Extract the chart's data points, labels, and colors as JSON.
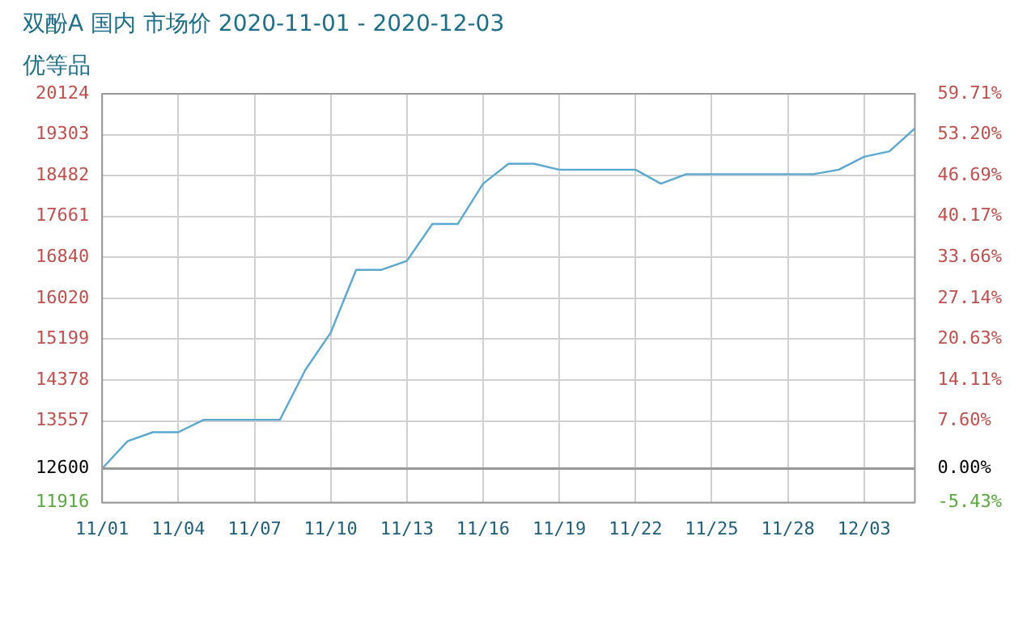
{
  "chart_data": {
    "type": "line",
    "title": "双酚A 国内 市场价 2020-11-01 - 2020-12-03",
    "subtitle": "优等品",
    "x": [
      "2020-11-01",
      "2020-11-02",
      "2020-11-03",
      "2020-11-04",
      "2020-11-05",
      "2020-11-08",
      "2020-11-09",
      "2020-11-10",
      "2020-11-11",
      "2020-11-12",
      "2020-11-13",
      "2020-11-14",
      "2020-11-15",
      "2020-11-16",
      "2020-11-17",
      "2020-11-18",
      "2020-11-19",
      "2020-11-22",
      "2020-11-23",
      "2020-11-24",
      "2020-11-29",
      "2020-11-30",
      "2020-12-01",
      "2020-12-02",
      "2020-12-03"
    ],
    "series": [
      {
        "color": "#5ba8d0",
        "values": [
          12600,
          13150,
          13330,
          13330,
          13580,
          13580,
          14580,
          15330,
          16590,
          16590,
          16770,
          17510,
          17510,
          18320,
          18720,
          18720,
          18600,
          18600,
          18320,
          18510,
          18510,
          18600,
          18860,
          18970,
          19430
        ]
      }
    ],
    "xlim": [
      "2020-11-01",
      "2020-12-03"
    ],
    "xticks": [
      {
        "value": "2020-11-01",
        "label": "11/01"
      },
      {
        "value": "2020-11-04",
        "label": "11/04"
      },
      {
        "value": "2020-11-07",
        "label": "11/07"
      },
      {
        "value": "2020-11-10",
        "label": "11/10"
      },
      {
        "value": "2020-11-13",
        "label": "11/13"
      },
      {
        "value": "2020-11-16",
        "label": "11/16"
      },
      {
        "value": "2020-11-19",
        "label": "11/19"
      },
      {
        "value": "2020-11-22",
        "label": "11/22"
      },
      {
        "value": "2020-11-25",
        "label": "11/25"
      },
      {
        "value": "2020-11-28",
        "label": "11/28"
      },
      {
        "value": "2020-12-01",
        "label": "12/03"
      }
    ],
    "ylim": [
      11916,
      20124
    ],
    "yticks": [
      11916,
      12600,
      13557,
      14378,
      15199,
      16020,
      16840,
      17661,
      18482,
      19303,
      20124
    ],
    "y2lim": [
      -5.43,
      59.71
    ],
    "y2ticks": [
      {
        "value": -5.43,
        "label": "-5.43%"
      },
      {
        "value": 0,
        "label": "0.00%"
      },
      {
        "value": 7.6,
        "label": "7.60%"
      },
      {
        "value": 14.11,
        "label": "14.11%"
      },
      {
        "value": 20.63,
        "label": "20.63%"
      },
      {
        "value": 27.14,
        "label": "27.14%"
      },
      {
        "value": 33.66,
        "label": "33.66%"
      },
      {
        "value": 40.17,
        "label": "40.17%"
      },
      {
        "value": 46.69,
        "label": "46.69%"
      },
      {
        "value": 53.2,
        "label": "53.20%"
      },
      {
        "value": 59.71,
        "label": "59.71%"
      }
    ],
    "ref_lines": [
      {
        "axis": "y",
        "value": 12600,
        "color": "#999999",
        "line_style": "solid"
      }
    ],
    "grid": true,
    "legend": false,
    "marker": "none",
    "line_style": "solid"
  }
}
